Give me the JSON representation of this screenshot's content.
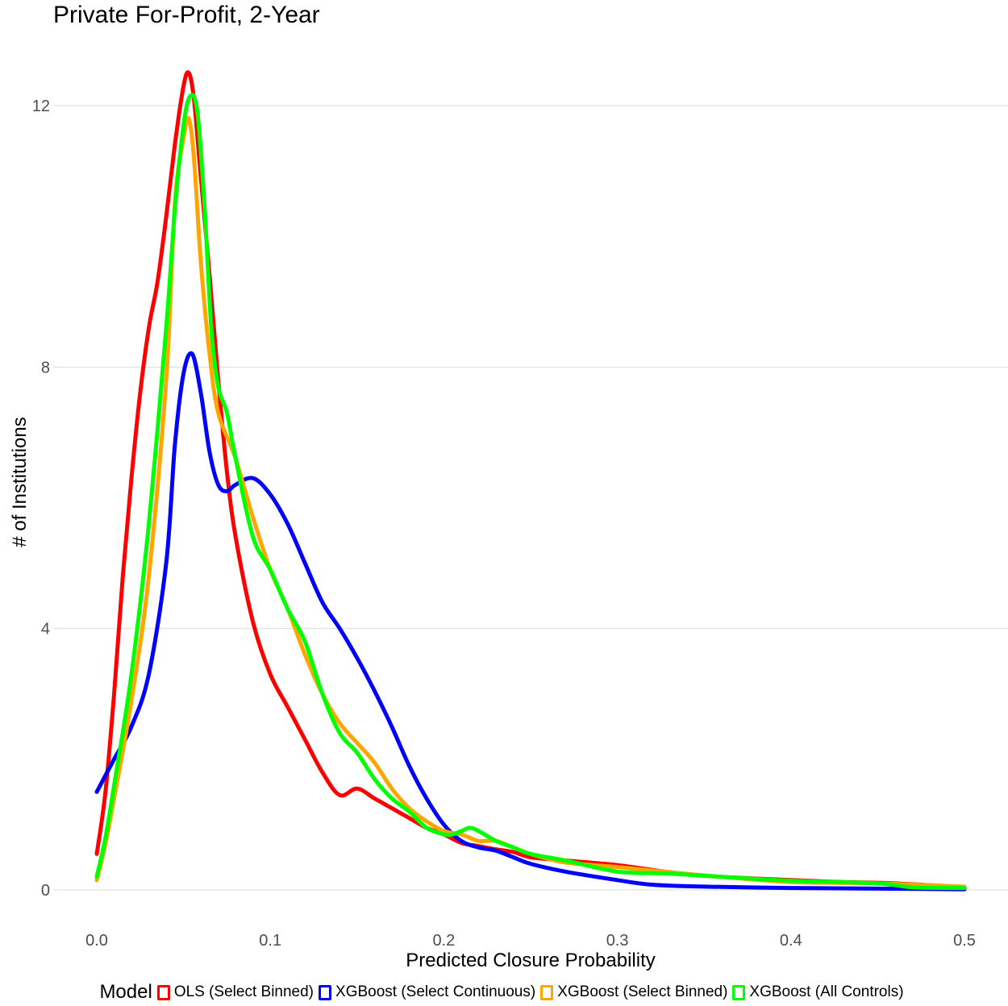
{
  "chart_data": {
    "type": "line",
    "title": "Private For-Profit, 2-Year",
    "xlabel": "Predicted Closure Probability",
    "ylabel": "# of Institutions",
    "xlim": [
      0,
      0.5
    ],
    "ylim": [
      0,
      12.6
    ],
    "xticks": [
      "0.0",
      "0.1",
      "0.2",
      "0.3",
      "0.4",
      "0.5"
    ],
    "xtick_values": [
      0,
      0.1,
      0.2,
      0.3,
      0.4,
      0.5
    ],
    "yticks": [
      "0",
      "4",
      "8",
      "12"
    ],
    "ytick_values": [
      0,
      4,
      8,
      12
    ],
    "grid": "horizontal",
    "legend_title": "Model",
    "legend_position": "bottom",
    "series": [
      {
        "name": "OLS (Select Binned)",
        "color": "#ff0000",
        "x": [
          0,
          0.005,
          0.01,
          0.015,
          0.02,
          0.025,
          0.03,
          0.035,
          0.04,
          0.045,
          0.05,
          0.053,
          0.056,
          0.06,
          0.065,
          0.07,
          0.075,
          0.08,
          0.09,
          0.1,
          0.11,
          0.12,
          0.13,
          0.14,
          0.15,
          0.16,
          0.17,
          0.18,
          0.19,
          0.2,
          0.21,
          0.22,
          0.23,
          0.24,
          0.25,
          0.27,
          0.3,
          0.33,
          0.36,
          0.4,
          0.43,
          0.46,
          0.5
        ],
        "y": [
          0.55,
          1.5,
          3.0,
          4.8,
          6.3,
          7.6,
          8.6,
          9.3,
          10.3,
          11.4,
          12.3,
          12.5,
          12.1,
          10.9,
          9.4,
          7.8,
          6.4,
          5.4,
          4.1,
          3.3,
          2.8,
          2.3,
          1.8,
          1.45,
          1.55,
          1.4,
          1.25,
          1.1,
          0.95,
          0.85,
          0.72,
          0.67,
          0.62,
          0.58,
          0.5,
          0.45,
          0.38,
          0.27,
          0.2,
          0.15,
          0.12,
          0.1,
          0.04
        ]
      },
      {
        "name": "XGBoost (Select Continuous)",
        "color": "#0000ff",
        "x": [
          0,
          0.01,
          0.02,
          0.03,
          0.04,
          0.045,
          0.05,
          0.055,
          0.06,
          0.065,
          0.07,
          0.075,
          0.08,
          0.09,
          0.1,
          0.11,
          0.12,
          0.13,
          0.14,
          0.15,
          0.16,
          0.17,
          0.18,
          0.19,
          0.2,
          0.21,
          0.22,
          0.23,
          0.24,
          0.25,
          0.27,
          0.3,
          0.32,
          0.35,
          0.4,
          0.45,
          0.5
        ],
        "y": [
          1.5,
          2.0,
          2.5,
          3.3,
          5.0,
          6.8,
          7.9,
          8.2,
          7.6,
          6.7,
          6.2,
          6.1,
          6.2,
          6.3,
          6.05,
          5.6,
          5.0,
          4.4,
          4.0,
          3.55,
          3.05,
          2.5,
          1.9,
          1.4,
          1.0,
          0.75,
          0.65,
          0.6,
          0.5,
          0.4,
          0.28,
          0.15,
          0.08,
          0.05,
          0.03,
          0.02,
          0.01
        ]
      },
      {
        "name": "XGBoost (Select Binned)",
        "color": "#ffa500",
        "x": [
          0,
          0.005,
          0.01,
          0.02,
          0.03,
          0.04,
          0.045,
          0.05,
          0.053,
          0.056,
          0.06,
          0.065,
          0.07,
          0.08,
          0.09,
          0.1,
          0.11,
          0.12,
          0.13,
          0.14,
          0.15,
          0.16,
          0.17,
          0.18,
          0.19,
          0.2,
          0.21,
          0.22,
          0.23,
          0.24,
          0.25,
          0.27,
          0.3,
          0.33,
          0.36,
          0.4,
          0.45,
          0.5
        ],
        "y": [
          0.15,
          0.7,
          1.4,
          2.9,
          4.8,
          7.8,
          10.5,
          11.5,
          11.8,
          11.2,
          9.6,
          8.2,
          7.3,
          6.6,
          5.7,
          4.9,
          4.3,
          3.6,
          3.0,
          2.55,
          2.25,
          1.95,
          1.55,
          1.25,
          1.05,
          0.9,
          0.85,
          0.75,
          0.75,
          0.65,
          0.55,
          0.42,
          0.35,
          0.27,
          0.2,
          0.12,
          0.1,
          0.05
        ]
      },
      {
        "name": "XGBoost (All Controls)",
        "color": "#00ff00",
        "x": [
          0,
          0.005,
          0.01,
          0.02,
          0.03,
          0.04,
          0.045,
          0.05,
          0.054,
          0.058,
          0.062,
          0.066,
          0.07,
          0.075,
          0.08,
          0.09,
          0.1,
          0.11,
          0.12,
          0.13,
          0.14,
          0.15,
          0.16,
          0.17,
          0.18,
          0.19,
          0.2,
          0.205,
          0.21,
          0.215,
          0.22,
          0.23,
          0.24,
          0.25,
          0.27,
          0.3,
          0.33,
          0.36,
          0.4,
          0.45,
          0.47,
          0.5
        ],
        "y": [
          0.2,
          0.8,
          1.6,
          3.3,
          5.6,
          8.6,
          10.4,
          11.7,
          12.15,
          11.9,
          10.5,
          8.6,
          7.7,
          7.3,
          6.6,
          5.4,
          4.9,
          4.3,
          3.8,
          3.0,
          2.4,
          2.1,
          1.7,
          1.4,
          1.2,
          0.95,
          0.85,
          0.85,
          0.9,
          0.95,
          0.9,
          0.75,
          0.65,
          0.55,
          0.45,
          0.28,
          0.25,
          0.2,
          0.14,
          0.1,
          0.04,
          0.03
        ]
      }
    ]
  }
}
